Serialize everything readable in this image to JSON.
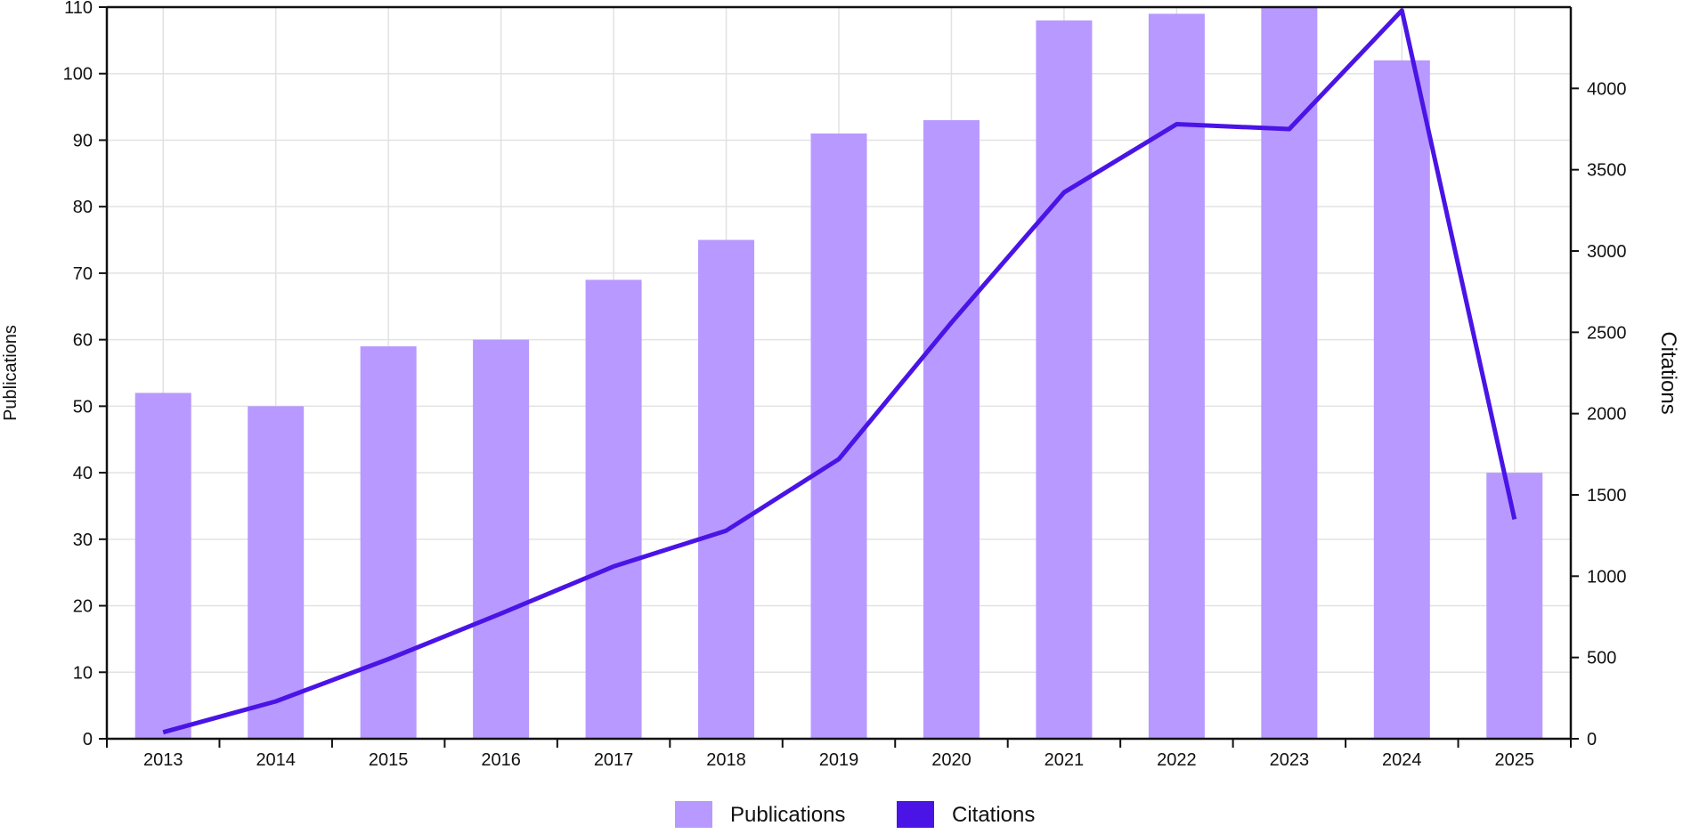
{
  "chart_data": {
    "type": "bar",
    "title": "",
    "categories": [
      "2013",
      "2014",
      "2015",
      "2016",
      "2017",
      "2018",
      "2019",
      "2020",
      "2021",
      "2022",
      "2023",
      "2024",
      "2025"
    ],
    "series": [
      {
        "name": "Publications",
        "type": "bar",
        "axis": "left",
        "color": "#b899ff",
        "values": [
          52,
          50,
          59,
          60,
          69,
          75,
          91,
          93,
          108,
          109,
          113,
          102,
          40
        ]
      },
      {
        "name": "Citations",
        "type": "line",
        "axis": "right",
        "color": "#4a14e6",
        "values": [
          40,
          230,
          490,
          770,
          1060,
          1280,
          1720,
          2560,
          3360,
          3780,
          3750,
          4480,
          1350
        ]
      }
    ],
    "ylabel": "Publications",
    "y2label": "Citations",
    "ylim": [
      0,
      110
    ],
    "y2lim": [
      0,
      4500
    ],
    "yticks": [
      0,
      10,
      20,
      30,
      40,
      50,
      60,
      70,
      80,
      90,
      100,
      110
    ],
    "y2ticks": [
      0,
      500,
      1000,
      1500,
      2000,
      2500,
      3000,
      3500,
      4000
    ],
    "grid": true,
    "legend": "bottom-center"
  }
}
